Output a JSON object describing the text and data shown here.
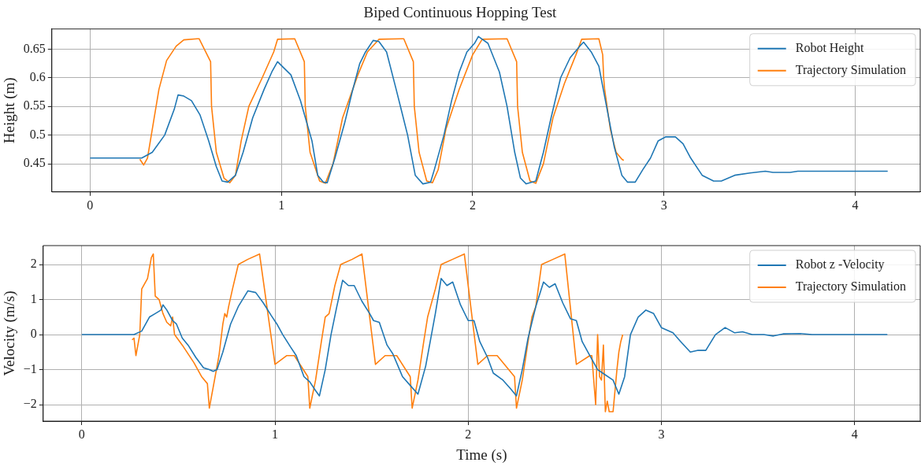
{
  "chart_data": [
    {
      "type": "line",
      "title": "Biped Continuous Hopping Test",
      "ylabel": "Height (m)",
      "xlim": [
        -0.2,
        4.34
      ],
      "xticks": [
        0,
        1,
        2,
        3,
        4
      ],
      "ylim": [
        0.401,
        0.685
      ],
      "yticks": [
        0.45,
        0.5,
        0.55,
        0.6,
        0.65
      ],
      "grid": true,
      "legend": "top right",
      "series": [
        {
          "name": "Robot Height",
          "color": "#1f77b4",
          "x": [
            0,
            0.27,
            0.325,
            0.39,
            0.44,
            0.46,
            0.49,
            0.53,
            0.575,
            0.62,
            0.66,
            0.69,
            0.72,
            0.76,
            0.8,
            0.85,
            0.91,
            0.95,
            0.98,
            1.01,
            1.05,
            1.1,
            1.16,
            1.19,
            1.22,
            1.24,
            1.28,
            1.33,
            1.37,
            1.41,
            1.44,
            1.48,
            1.51,
            1.55,
            1.6,
            1.66,
            1.7,
            1.74,
            1.78,
            1.8,
            1.85,
            1.89,
            1.93,
            1.97,
            2.01,
            2.03,
            2.08,
            2.14,
            2.18,
            2.22,
            2.25,
            2.28,
            2.33,
            2.37,
            2.41,
            2.46,
            2.51,
            2.56,
            2.58,
            2.62,
            2.66,
            2.7,
            2.74,
            2.78,
            2.81,
            2.85,
            2.89,
            2.93,
            2.97,
            3.01,
            3.06,
            3.1,
            3.14,
            3.2,
            3.26,
            3.3,
            3.37,
            3.45,
            3.53,
            3.57,
            3.66,
            3.7,
            4.17
          ],
          "values": [
            0.46,
            0.46,
            0.47,
            0.5,
            0.545,
            0.57,
            0.568,
            0.56,
            0.535,
            0.49,
            0.445,
            0.42,
            0.418,
            0.43,
            0.47,
            0.53,
            0.58,
            0.61,
            0.628,
            0.618,
            0.605,
            0.56,
            0.49,
            0.43,
            0.418,
            0.417,
            0.46,
            0.52,
            0.575,
            0.625,
            0.645,
            0.665,
            0.663,
            0.645,
            0.58,
            0.5,
            0.43,
            0.415,
            0.418,
            0.44,
            0.5,
            0.56,
            0.61,
            0.645,
            0.66,
            0.672,
            0.66,
            0.61,
            0.55,
            0.47,
            0.425,
            0.415,
            0.42,
            0.47,
            0.53,
            0.6,
            0.635,
            0.655,
            0.662,
            0.645,
            0.62,
            0.55,
            0.48,
            0.43,
            0.418,
            0.418,
            0.44,
            0.46,
            0.49,
            0.497,
            0.497,
            0.485,
            0.46,
            0.43,
            0.42,
            0.42,
            0.43,
            0.434,
            0.437,
            0.435,
            0.435,
            0.437,
            0.437
          ]
        },
        {
          "name": "Trajectory Simulation",
          "color": "#ff7f0e",
          "x": [
            0.26,
            0.28,
            0.3,
            0.33,
            0.36,
            0.4,
            0.45,
            0.49,
            0.56,
            0.57,
            0.63,
            0.635,
            0.66,
            0.7,
            0.73,
            0.76,
            0.79,
            0.83,
            0.9,
            0.96,
            0.98,
            1.07,
            1.12,
            1.125,
            1.15,
            1.2,
            1.23,
            1.27,
            1.32,
            1.4,
            1.45,
            1.51,
            1.64,
            1.69,
            1.695,
            1.72,
            1.76,
            1.79,
            1.82,
            1.86,
            1.93,
            2,
            2.05,
            2.18,
            2.23,
            2.235,
            2.26,
            2.3,
            2.33,
            2.37,
            2.42,
            2.48,
            2.54,
            2.57,
            2.66,
            2.68,
            2.685,
            2.69,
            2.72,
            2.75,
            2.78,
            2.79
          ],
          "values": [
            0.458,
            0.448,
            0.46,
            0.52,
            0.58,
            0.63,
            0.655,
            0.666,
            0.668,
            0.668,
            0.628,
            0.55,
            0.47,
            0.425,
            0.417,
            0.43,
            0.49,
            0.55,
            0.6,
            0.645,
            0.667,
            0.668,
            0.628,
            0.55,
            0.47,
            0.42,
            0.416,
            0.45,
            0.53,
            0.605,
            0.645,
            0.667,
            0.668,
            0.628,
            0.55,
            0.47,
            0.42,
            0.417,
            0.44,
            0.51,
            0.58,
            0.64,
            0.667,
            0.668,
            0.628,
            0.55,
            0.47,
            0.42,
            0.416,
            0.45,
            0.53,
            0.59,
            0.64,
            0.667,
            0.668,
            0.64,
            0.6,
            0.58,
            0.51,
            0.47,
            0.458,
            0.456
          ]
        }
      ]
    },
    {
      "type": "line",
      "xlabel": "Time (s)",
      "ylabel": "Velocity (m/s)",
      "xlim": [
        -0.2,
        4.34
      ],
      "xticks": [
        0,
        1,
        2,
        3,
        4
      ],
      "ylim": [
        -2.47,
        2.54
      ],
      "yticks": [
        {
          "value": -2,
          "label": "−2"
        },
        {
          "value": -1,
          "label": "−1"
        },
        0,
        1,
        2
      ],
      "grid": true,
      "legend": "top right",
      "series": [
        {
          "name": "Robot z -Velocity",
          "color": "#1f77b4",
          "x": [
            0,
            0.27,
            0.31,
            0.35,
            0.38,
            0.41,
            0.42,
            0.44,
            0.47,
            0.49,
            0.52,
            0.55,
            0.59,
            0.63,
            0.66,
            0.68,
            0.7,
            0.73,
            0.77,
            0.81,
            0.86,
            0.9,
            0.94,
            0.98,
            1.01,
            1.04,
            1.08,
            1.11,
            1.15,
            1.18,
            1.21,
            1.23,
            1.26,
            1.29,
            1.32,
            1.35,
            1.38,
            1.41,
            1.45,
            1.49,
            1.51,
            1.54,
            1.58,
            1.61,
            1.66,
            1.7,
            1.74,
            1.78,
            1.81,
            1.83,
            1.86,
            1.89,
            1.92,
            1.96,
            2,
            2.03,
            2.06,
            2.1,
            2.13,
            2.18,
            2.22,
            2.25,
            2.28,
            2.31,
            2.35,
            2.39,
            2.42,
            2.45,
            2.49,
            2.53,
            2.56,
            2.59,
            2.63,
            2.67,
            2.71,
            2.75,
            2.78,
            2.81,
            2.84,
            2.88,
            2.92,
            2.96,
            3,
            3.06,
            3.1,
            3.15,
            3.19,
            3.23,
            3.28,
            3.33,
            3.38,
            3.42,
            3.47,
            3.53,
            3.58,
            3.63,
            3.72,
            3.78,
            4.17
          ],
          "values": [
            0,
            0,
            0.1,
            0.5,
            0.6,
            0.7,
            0.85,
            0.7,
            0.4,
            0.3,
            -0.1,
            -0.3,
            -0.65,
            -0.95,
            -1,
            -1.05,
            -1,
            -0.5,
            0.3,
            0.8,
            1.25,
            1.2,
            0.9,
            0.55,
            0.3,
            0,
            -0.35,
            -0.6,
            -1.2,
            -1.35,
            -1.6,
            -1.75,
            -1,
            0,
            0.8,
            1.55,
            1.4,
            1.4,
            0.95,
            0.6,
            0.4,
            0.35,
            -0.3,
            -0.55,
            -1.2,
            -1.45,
            -1.7,
            -0.9,
            0,
            0.6,
            1.6,
            1.4,
            1.5,
            0.85,
            0.4,
            0.4,
            -0.2,
            -0.65,
            -1.1,
            -1.3,
            -1.55,
            -1.75,
            -1,
            -0.1,
            0.8,
            1.5,
            1.35,
            1.45,
            0.9,
            0.45,
            0.4,
            -0.2,
            -0.6,
            -1,
            -1.15,
            -1.3,
            -1.7,
            -1.2,
            0,
            0.5,
            0.7,
            0.6,
            0.2,
            0.05,
            -0.2,
            -0.5,
            -0.45,
            -0.45,
            0,
            0.2,
            0.05,
            0.08,
            0,
            0,
            -0.04,
            0.02,
            0.03,
            0,
            0
          ]
        },
        {
          "name": "Trajectory Simulation",
          "color": "#ff7f0e",
          "x": [
            0.26,
            0.27,
            0.28,
            0.3,
            0.31,
            0.34,
            0.36,
            0.37,
            0.38,
            0.4,
            0.42,
            0.44,
            0.46,
            0.47,
            0.48,
            0.52,
            0.58,
            0.62,
            0.65,
            0.66,
            0.68,
            0.71,
            0.73,
            0.74,
            0.75,
            0.76,
            0.78,
            0.81,
            0.86,
            0.92,
            1,
            1.06,
            1.1,
            1.17,
            1.18,
            1.21,
            1.24,
            1.26,
            1.28,
            1.31,
            1.34,
            1.4,
            1.45,
            1.52,
            1.57,
            1.63,
            1.7,
            1.71,
            1.74,
            1.77,
            1.79,
            1.83,
            1.86,
            1.92,
            1.98,
            2.05,
            2.1,
            2.15,
            2.24,
            2.25,
            2.28,
            2.31,
            2.33,
            2.35,
            2.38,
            2.44,
            2.5,
            2.56,
            2.63,
            2.64,
            2.66,
            2.67,
            2.68,
            2.69,
            2.7,
            2.71,
            2.72,
            2.73,
            2.75,
            2.77,
            2.78,
            2.79,
            2.8
          ],
          "values": [
            -0.15,
            -0.1,
            -0.6,
            0,
            1.3,
            1.6,
            2.2,
            2.3,
            1.1,
            1,
            0.6,
            0.35,
            0.25,
            0.5,
            0,
            -0.3,
            -0.8,
            -1.2,
            -1.4,
            -2.1,
            -1.5,
            -0.6,
            0.3,
            0.6,
            0.5,
            0.8,
            1.3,
            2,
            2.15,
            2.3,
            -0.85,
            -0.6,
            -0.6,
            -1.2,
            -2.1,
            -1.3,
            -0.2,
            0.5,
            0.6,
            1.4,
            2,
            2.15,
            2.3,
            -0.85,
            -0.6,
            -0.6,
            -1.2,
            -2.1,
            -1.3,
            -0.2,
            0.5,
            1.3,
            2,
            2.15,
            2.3,
            -0.85,
            -0.6,
            -0.6,
            -1.2,
            -2.1,
            -1.3,
            -0.2,
            0.5,
            0.8,
            2,
            2.15,
            2.3,
            -0.85,
            -0.6,
            -0.6,
            -2,
            0,
            -1.2,
            -1.3,
            -0.3,
            -2.2,
            -1.9,
            -2.2,
            -2.2,
            -1,
            -0.5,
            -0.2,
            0
          ]
        }
      ]
    }
  ]
}
